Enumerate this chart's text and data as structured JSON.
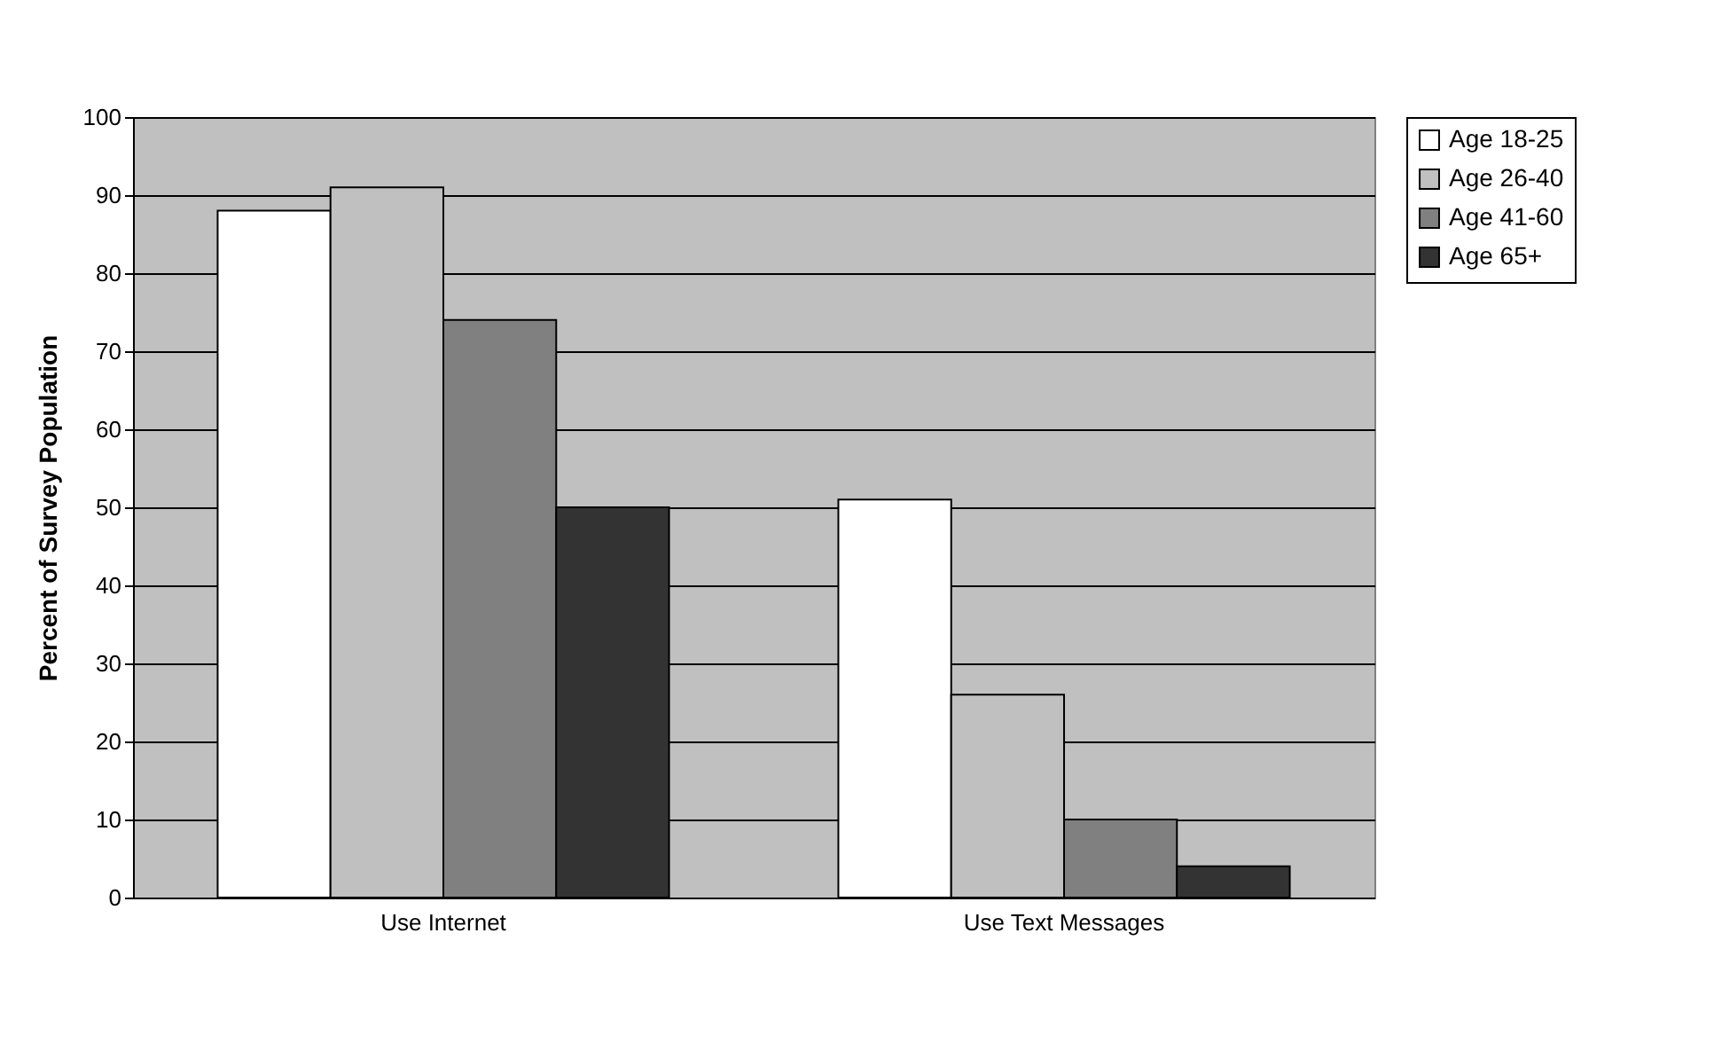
{
  "chart_data": {
    "type": "bar",
    "ylabel": "Percent of Survey Population",
    "categories": [
      "Use Internet",
      "Use Text Messages"
    ],
    "series": [
      {
        "name": "Age 18-25",
        "color": "#ffffff",
        "values": [
          88,
          51
        ]
      },
      {
        "name": "Age 26-40",
        "color": "#c0c0c0",
        "values": [
          91,
          26
        ]
      },
      {
        "name": "Age 41-60",
        "color": "#808080",
        "values": [
          74,
          10
        ]
      },
      {
        "name": "Age 65+",
        "color": "#333333",
        "values": [
          50,
          4
        ]
      }
    ],
    "ylim": [
      0,
      100
    ],
    "yticks": [
      0,
      10,
      20,
      30,
      40,
      50,
      60,
      70,
      80,
      90,
      100
    ],
    "grid": "y",
    "legend": "right"
  }
}
